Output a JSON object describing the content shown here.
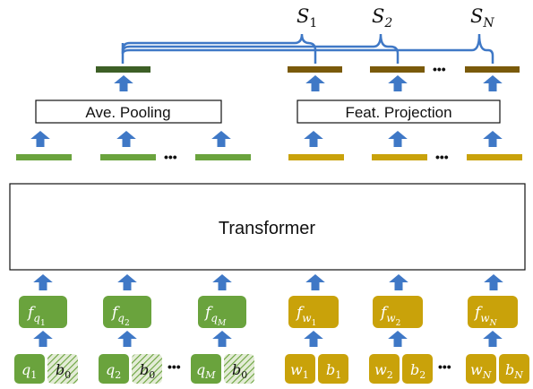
{
  "scores": {
    "s1": "S",
    "s1_sub": "1",
    "s2": "S",
    "s2_sub": "2",
    "sn": "S",
    "sn_sub": "N"
  },
  "blocks": {
    "ave_pooling": "Ave. Pooling",
    "feat_projection": "Feat. Projection",
    "transformer": "Transformer"
  },
  "ellipsis": "•••",
  "query_side": {
    "features": [
      {
        "f": "f",
        "sub": "q",
        "subsub": "1"
      },
      {
        "f": "f",
        "sub": "q",
        "subsub": "2"
      },
      {
        "f": "f",
        "sub": "q",
        "subsub": "M"
      }
    ],
    "tokens": [
      {
        "var": "q",
        "sub": "1",
        "b": "b",
        "b_sub": "0"
      },
      {
        "var": "q",
        "sub": "2",
        "b": "b",
        "b_sub": "0"
      },
      {
        "var": "q",
        "sub": "M",
        "b": "b",
        "b_sub": "0"
      }
    ]
  },
  "word_side": {
    "features": [
      {
        "f": "f",
        "sub": "w",
        "subsub": "1"
      },
      {
        "f": "f",
        "sub": "w",
        "subsub": "2"
      },
      {
        "f": "f",
        "sub": "w",
        "subsub": "N"
      }
    ],
    "tokens": [
      {
        "var": "w",
        "sub": "1",
        "b": "b",
        "b_sub": "1"
      },
      {
        "var": "w",
        "sub": "2",
        "b": "b",
        "b_sub": "2"
      },
      {
        "var": "w",
        "sub": "N",
        "b": "b",
        "b_sub": "N"
      }
    ]
  },
  "colors": {
    "green": "#6aa33d",
    "green_dark": "#3d5f26",
    "gold": "#c9a20a",
    "gold_dark": "#7a5a0a",
    "arrow": "#3f78c6",
    "bracket": "#3f78c6"
  }
}
